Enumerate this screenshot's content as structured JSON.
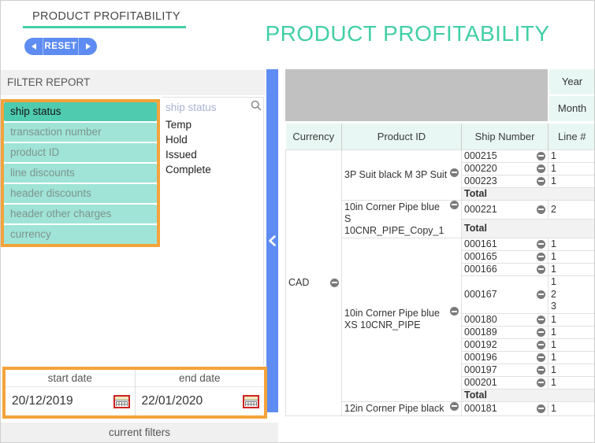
{
  "page": {
    "tab_title": "PRODUCT PROFITABILITY",
    "main_title": "PRODUCT PROFITABILITY",
    "reset_label": "RESET"
  },
  "filter_panel": {
    "header": "FILTER REPORT",
    "fields": [
      {
        "label": "ship status",
        "selected": true
      },
      {
        "label": "transaction number",
        "selected": false
      },
      {
        "label": "product ID",
        "selected": false
      },
      {
        "label": "line discounts",
        "selected": false
      },
      {
        "label": "header discounts",
        "selected": false
      },
      {
        "label": "header other charges",
        "selected": false
      },
      {
        "label": "currency",
        "selected": false
      }
    ],
    "search_placeholder": "ship status",
    "options": [
      "Temp",
      "Hold",
      "Issued",
      "Complete"
    ],
    "dates": {
      "start_label": "start date",
      "start_value": "20/12/2019",
      "end_label": "end date",
      "end_value": "22/01/2020"
    },
    "current_filters_label": "current filters"
  },
  "table": {
    "period_headers": [
      "Year",
      "Month"
    ],
    "columns": [
      "Currency",
      "Product ID",
      "Ship Number",
      "Line #"
    ],
    "currency": "CAD",
    "total_label": "Total",
    "groups": [
      {
        "product": "3P Suit black M 3P Suit",
        "has_total": true,
        "ships": [
          {
            "ship": "000215",
            "lines": [
              "1"
            ]
          },
          {
            "ship": "000220",
            "lines": [
              "1"
            ]
          },
          {
            "ship": "000223",
            "lines": [
              "1"
            ]
          }
        ]
      },
      {
        "product": "10in Corner Pipe blue S 10CNR_PIPE_Copy_1",
        "has_total": true,
        "ships": [
          {
            "ship": "000221",
            "lines": [
              "2"
            ]
          }
        ]
      },
      {
        "product": "10in Corner Pipe blue XS 10CNR_PIPE",
        "has_total": true,
        "ships": [
          {
            "ship": "000161",
            "lines": [
              "1"
            ]
          },
          {
            "ship": "000165",
            "lines": [
              "1"
            ]
          },
          {
            "ship": "000166",
            "lines": [
              "1"
            ]
          },
          {
            "ship": "000167",
            "lines": [
              "1",
              "2",
              "3"
            ]
          },
          {
            "ship": "000180",
            "lines": [
              "1"
            ]
          },
          {
            "ship": "000189",
            "lines": [
              "1"
            ]
          },
          {
            "ship": "000192",
            "lines": [
              "1"
            ]
          },
          {
            "ship": "000196",
            "lines": [
              "1"
            ]
          },
          {
            "ship": "000197",
            "lines": [
              "1"
            ]
          },
          {
            "ship": "000201",
            "lines": [
              "1"
            ]
          }
        ]
      },
      {
        "product": "12in Corner Pipe black",
        "has_total": false,
        "ships": [
          {
            "ship": "000181",
            "lines": [
              "1"
            ]
          }
        ]
      }
    ]
  },
  "icons": {
    "search": "magnifier",
    "collapse_panel": "chevron-left",
    "collapse_node": "circle-minus",
    "calendar": "calendar-grid",
    "reset_prev": "arrow-left",
    "reset_next": "arrow-right"
  },
  "colors": {
    "teal_accent": "#42cfa5",
    "filter_selected_bg": "#4fcbb0",
    "filter_item_bg": "#9fe4d6",
    "orange_border": "#f3a33b",
    "blue_accent": "#5e8cf2",
    "cell_mint": "#e8f7f3",
    "gray_block": "#c1c1c1",
    "total_row_bg": "#f2f2f2"
  }
}
